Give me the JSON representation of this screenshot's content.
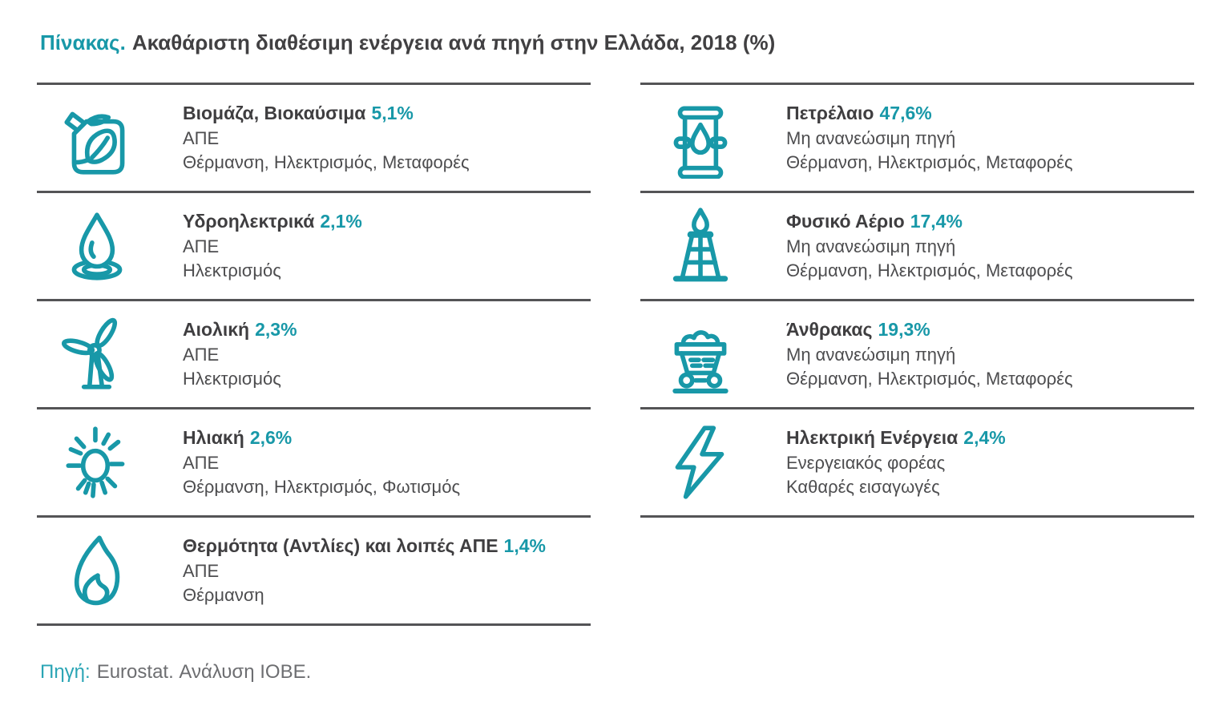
{
  "title": {
    "label": "Πίνακας.",
    "text": "Ακαθάριστη διαθέσιμη ενέργεια ανά πηγή στην Ελλάδα, 2018 (%)"
  },
  "colors": {
    "teal": "#1898A8",
    "dark_text": "#414042",
    "secondary_text": "#4D4D4F",
    "divider": "#545456",
    "footer_gray": "#6D6E71"
  },
  "columns": {
    "left": [
      {
        "icon": "biofuel-canister-icon",
        "name": "Βιομάζα, Βιοκαύσιμα",
        "value": "5,1%",
        "category": "ΑΠΕ",
        "uses": "Θέρμανση, Ηλεκτρισμός, Μεταφορές"
      },
      {
        "icon": "water-drop-icon",
        "name": "Υδροηλεκτρικά",
        "value": "2,1%",
        "category": "ΑΠΕ",
        "uses": "Ηλεκτρισμός"
      },
      {
        "icon": "wind-turbine-icon",
        "name": "Αιολική",
        "value": "2,3%",
        "category": "ΑΠΕ",
        "uses": "Ηλεκτρισμός"
      },
      {
        "icon": "sun-icon",
        "name": "Ηλιακή",
        "value": "2,6%",
        "category": "ΑΠΕ",
        "uses": "Θέρμανση, Ηλεκτρισμός, Φωτισμός"
      },
      {
        "icon": "flame-icon",
        "name": "Θερμότητα (Αντλίες) και λοιπές ΑΠΕ",
        "value": "1,4%",
        "category": "ΑΠΕ",
        "uses": "Θέρμανση"
      }
    ],
    "right": [
      {
        "icon": "oil-barrel-icon",
        "name": "Πετρέλαιο",
        "value": "47,6%",
        "category": "Μη ανανεώσιμη πηγή",
        "uses": "Θέρμανση, Ηλεκτρισμός, Μεταφορές"
      },
      {
        "icon": "gas-derrick-icon",
        "name": "Φυσικό Αέριο",
        "value": "17,4%",
        "category": "Μη ανανεώσιμη πηγή",
        "uses": "Θέρμανση, Ηλεκτρισμός, Μεταφορές"
      },
      {
        "icon": "coal-cart-icon",
        "name": "Άνθρακας",
        "value": "19,3%",
        "category": "Μη ανανεώσιμη πηγή",
        "uses": "Θέρμανση, Ηλεκτρισμός, Μεταφορές"
      },
      {
        "icon": "lightning-bolt-icon",
        "name": "Ηλεκτρική Ενέργεια",
        "value": "2,4%",
        "category": "Ενεργειακός φορέας",
        "uses": "Καθαρές εισαγωγές"
      }
    ]
  },
  "footer": {
    "label": "Πηγή:",
    "text": "Eurostat. Ανάλυση ΙΟΒΕ."
  },
  "chart_data": {
    "type": "table",
    "title": "Ακαθάριστη διαθέσιμη ενέργεια ανά πηγή στην Ελλάδα, 2018 (%)",
    "categories": [
      "Βιομάζα, Βιοκαύσιμα",
      "Υδροηλεκτρικά",
      "Αιολική",
      "Ηλιακή",
      "Θερμότητα (Αντλίες) και λοιπές ΑΠΕ",
      "Πετρέλαιο",
      "Φυσικό Αέριο",
      "Άνθρακας",
      "Ηλεκτρική Ενέργεια"
    ],
    "values": [
      5.1,
      2.1,
      2.3,
      2.6,
      1.4,
      47.6,
      17.4,
      19.3,
      2.4
    ],
    "unit": "%",
    "groups": [
      "ΑΠΕ",
      "ΑΠΕ",
      "ΑΠΕ",
      "ΑΠΕ",
      "ΑΠΕ",
      "Μη ανανεώσιμη πηγή",
      "Μη ανανεώσιμη πηγή",
      "Μη ανανεώσιμη πηγή",
      "Ενεργειακός φορέας"
    ],
    "source": "Πηγή: Eurostat. Ανάλυση ΙΟΒΕ."
  }
}
